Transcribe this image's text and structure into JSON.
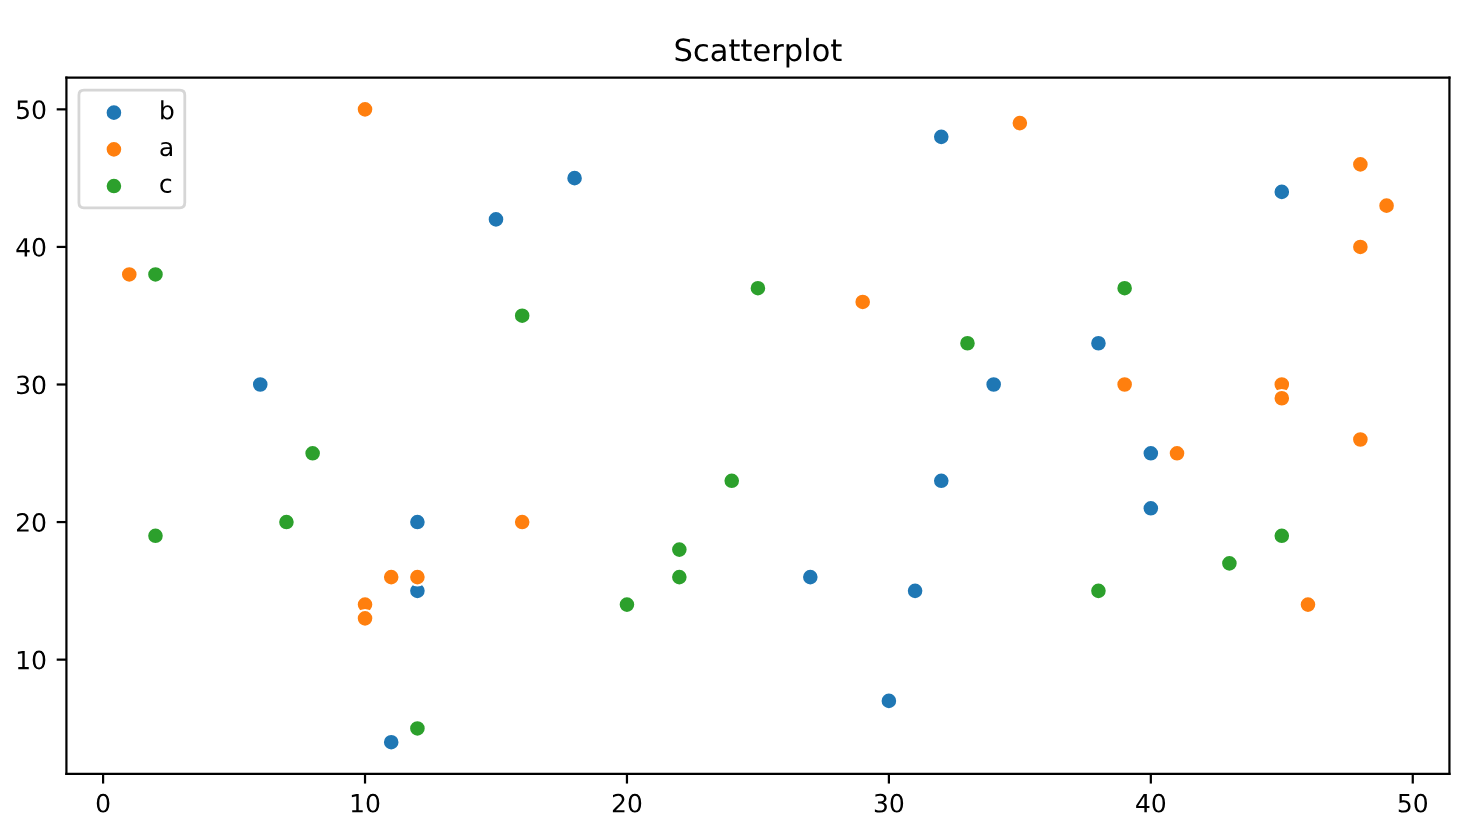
{
  "chart_data": {
    "type": "scatter",
    "title": "Scatterplot",
    "series": [
      {
        "name": "b",
        "color": "#1f77b4",
        "x": [
          6,
          11,
          12,
          12,
          15,
          18,
          27,
          30,
          31,
          32,
          32,
          34,
          38,
          40,
          40,
          45
        ],
        "values": [
          30,
          4,
          20,
          15,
          42,
          45,
          16,
          7,
          15,
          48,
          23,
          30,
          33,
          25,
          21,
          44
        ]
      },
      {
        "name": "a",
        "color": "#ff7f0e",
        "x": [
          1,
          10,
          10,
          10,
          11,
          12,
          16,
          29,
          35,
          39,
          41,
          45,
          45,
          46,
          48,
          48,
          48,
          49
        ],
        "values": [
          38,
          50,
          14,
          13,
          16,
          16,
          20,
          36,
          49,
          30,
          25,
          30,
          29,
          14,
          46,
          40,
          26,
          43
        ]
      },
      {
        "name": "c",
        "color": "#2ca02c",
        "x": [
          2,
          2,
          7,
          8,
          12,
          16,
          20,
          22,
          22,
          24,
          25,
          33,
          38,
          39,
          43,
          45
        ],
        "values": [
          38,
          19,
          20,
          25,
          5,
          35,
          14,
          18,
          16,
          23,
          37,
          33,
          15,
          37,
          17,
          19
        ]
      }
    ],
    "xlim": [
      -1.4,
      51.4
    ],
    "ylim": [
      1.7,
      52.3
    ],
    "xticks": [
      0,
      10,
      20,
      30,
      40,
      50
    ],
    "yticks": [
      10,
      20,
      30,
      40,
      50
    ],
    "marker": "circle",
    "legend": "top left",
    "grid": false
  }
}
